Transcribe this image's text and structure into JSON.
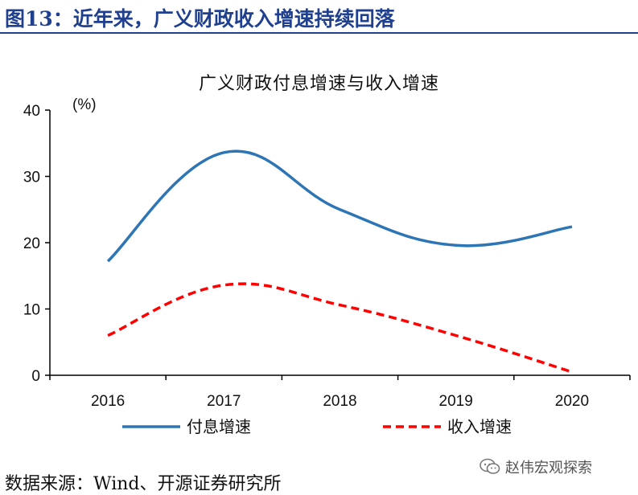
{
  "header": {
    "title": "图13：近年来，广义财政收入增速持续回落"
  },
  "source": "数据来源：Wind、开源证券研究所",
  "watermark": {
    "text": "赵伟宏观探索",
    "icon": "wechat-icon"
  },
  "chart_data": {
    "type": "line",
    "title": "广义财政付息增速与收入增速",
    "unit": "(%)",
    "x": [
      "2016",
      "2017",
      "2018",
      "2019",
      "2020"
    ],
    "ylim": [
      0,
      40
    ],
    "yticks": [
      0,
      10,
      20,
      30,
      40
    ],
    "grid": false,
    "legend_position": "bottom",
    "series": [
      {
        "name": "付息增速",
        "values": [
          17.2,
          33.6,
          25.0,
          19.6,
          22.4
        ],
        "color": "#2e75b6",
        "style": "solid"
      },
      {
        "name": "收入增速",
        "values": [
          6.0,
          13.6,
          10.6,
          6.0,
          0.5
        ],
        "color": "#ff0000",
        "style": "dashed"
      }
    ]
  }
}
